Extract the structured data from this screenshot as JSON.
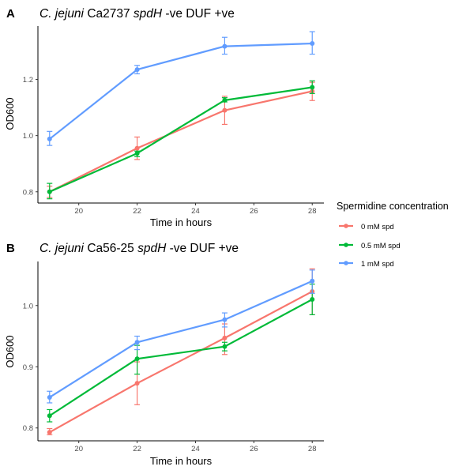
{
  "figure": {
    "panels": [
      {
        "letter": "A",
        "title": {
          "species": "C. jejuni",
          "strain": "Ca2737",
          "gene": "spdH",
          "rest": "-ve  DUF +ve"
        },
        "xlabel": "Time in hours",
        "ylabel": "OD600"
      },
      {
        "letter": "B",
        "title": {
          "species": "C. jejuni",
          "strain": "Ca56-25",
          "gene": "spdH",
          "rest": "-ve  DUF +ve"
        },
        "xlabel": "Time in hours",
        "ylabel": "OD600"
      }
    ],
    "legend": {
      "title": "Spermidine concentration",
      "items": [
        {
          "label": "0 mM spd",
          "color": "#F8766D"
        },
        {
          "label": "0.5 mM spd",
          "color": "#00BA38"
        },
        {
          "label": "1 mM spd",
          "color": "#619CFF"
        }
      ]
    }
  },
  "chart_data": [
    {
      "type": "line",
      "title": "C. jejuni Ca2737 spdH -ve  DUF +ve",
      "xlabel": "Time in hours",
      "ylabel": "OD600",
      "xlim": [
        18.6,
        28.4
      ],
      "ylim": [
        0.76,
        1.39
      ],
      "x_ticks": [
        20,
        22,
        24,
        26,
        28
      ],
      "y_ticks": [
        0.8,
        1.0,
        1.2
      ],
      "y_tick_labels": [
        "0.8",
        "1.0",
        "1.2"
      ],
      "grid": false,
      "x": [
        19,
        22,
        25,
        28
      ],
      "series": [
        {
          "name": "0 mM spd",
          "color": "#F8766D",
          "values": [
            0.8,
            0.955,
            1.09,
            1.158
          ],
          "err_low": [
            0.78,
            0.915,
            1.04,
            1.125
          ],
          "err_high": [
            0.82,
            0.995,
            1.14,
            1.19
          ]
        },
        {
          "name": "0.5 mM spd",
          "color": "#00BA38",
          "values": [
            0.8,
            0.937,
            1.126,
            1.172
          ],
          "err_low": [
            0.775,
            0.925,
            1.12,
            1.15
          ],
          "err_high": [
            0.83,
            0.945,
            1.135,
            1.195
          ]
        },
        {
          "name": "1 mM spd",
          "color": "#619CFF",
          "values": [
            0.988,
            1.235,
            1.318,
            1.328
          ],
          "err_low": [
            0.965,
            1.22,
            1.29,
            1.29
          ],
          "err_high": [
            1.015,
            1.25,
            1.35,
            1.37
          ]
        }
      ]
    },
    {
      "type": "line",
      "title": "C. jejuni Ca56-25 spdH -ve  DUF +ve",
      "xlabel": "Time in hours",
      "ylabel": "OD600",
      "xlim": [
        18.6,
        28.4
      ],
      "ylim": [
        0.779,
        1.072
      ],
      "x_ticks": [
        20,
        22,
        24,
        26,
        28
      ],
      "y_ticks": [
        0.8,
        0.9,
        1.0
      ],
      "y_tick_labels": [
        "0.8",
        "0.9",
        "1.0"
      ],
      "grid": false,
      "x": [
        19,
        22,
        25,
        28
      ],
      "series": [
        {
          "name": "0 mM spd",
          "color": "#F8766D",
          "values": [
            0.793,
            0.873,
            0.947,
            1.023
          ],
          "err_low": [
            0.789,
            0.838,
            0.92,
            0.985
          ],
          "err_high": [
            0.799,
            0.908,
            0.97,
            1.06
          ]
        },
        {
          "name": "0.5 mM spd",
          "color": "#00BA38",
          "values": [
            0.82,
            0.913,
            0.933,
            1.01
          ],
          "err_low": [
            0.81,
            0.888,
            0.926,
            0.985
          ],
          "err_high": [
            0.83,
            0.935,
            0.94,
            1.035
          ]
        },
        {
          "name": "1 mM spd",
          "color": "#619CFF",
          "values": [
            0.85,
            0.94,
            0.977,
            1.04
          ],
          "err_low": [
            0.841,
            0.928,
            0.965,
            1.02
          ],
          "err_high": [
            0.86,
            0.95,
            0.988,
            1.058
          ]
        }
      ]
    }
  ]
}
